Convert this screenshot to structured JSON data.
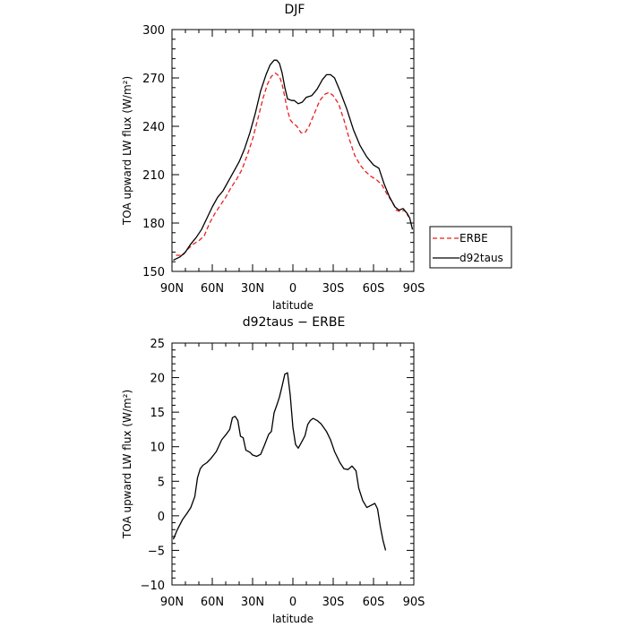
{
  "chart_data": [
    {
      "type": "line",
      "title": "DJF",
      "xlabel": "latitude",
      "ylabel": "TOA upward LW flux (W/m²)",
      "xlim": [
        90,
        -90
      ],
      "ylim": [
        150,
        300
      ],
      "x_ticks": [
        "90N",
        "60N",
        "30N",
        "0",
        "30S",
        "60S",
        "90S"
      ],
      "y_ticks": [
        150,
        180,
        210,
        240,
        270,
        300
      ],
      "legend": {
        "placement": "right",
        "entries": [
          "ERBE",
          "d92taus"
        ]
      },
      "series": [
        {
          "name": "ERBE",
          "color": "#e8201e",
          "style": "dashed",
          "points": [
            [
              87,
              160
            ],
            [
              82,
              160
            ],
            [
              78,
              164
            ],
            [
              74,
              167
            ],
            [
              70,
              169
            ],
            [
              66,
              172
            ],
            [
              62,
              180
            ],
            [
              58,
              186
            ],
            [
              54,
              191
            ],
            [
              50,
              196
            ],
            [
              46,
              202
            ],
            [
              42,
              207
            ],
            [
              38,
              213
            ],
            [
              34,
              222
            ],
            [
              30,
              232
            ],
            [
              26,
              245
            ],
            [
              22,
              258
            ],
            [
              19,
              266
            ],
            [
              16,
              271
            ],
            [
              13,
              273
            ],
            [
              10,
              271
            ],
            [
              8,
              266
            ],
            [
              6,
              258
            ],
            [
              4,
              250
            ],
            [
              2,
              244
            ],
            [
              0,
              242
            ],
            [
              -3,
              240
            ],
            [
              -6,
              236
            ],
            [
              -9,
              236
            ],
            [
              -12,
              240
            ],
            [
              -16,
              248
            ],
            [
              -20,
              256
            ],
            [
              -24,
              260
            ],
            [
              -27,
              261
            ],
            [
              -30,
              259
            ],
            [
              -34,
              254
            ],
            [
              -38,
              244
            ],
            [
              -42,
              232
            ],
            [
              -46,
              222
            ],
            [
              -50,
              216
            ],
            [
              -54,
              212
            ],
            [
              -58,
              209
            ],
            [
              -62,
              207
            ],
            [
              -66,
              204
            ],
            [
              -70,
              198
            ],
            [
              -74,
              193
            ],
            [
              -77,
              188
            ],
            [
              -80,
              187
            ],
            [
              -83,
              188
            ],
            [
              -86,
              184
            ]
          ]
        },
        {
          "name": "d92taus",
          "color": "#000000",
          "style": "solid",
          "points": [
            [
              89,
              157
            ],
            [
              84,
              159
            ],
            [
              80,
              162
            ],
            [
              76,
              167
            ],
            [
              72,
              171
            ],
            [
              68,
              176
            ],
            [
              64,
              183
            ],
            [
              60,
              190
            ],
            [
              56,
              196
            ],
            [
              52,
              200
            ],
            [
              48,
              206
            ],
            [
              44,
              212
            ],
            [
              40,
              218
            ],
            [
              36,
              226
            ],
            [
              32,
              236
            ],
            [
              28,
              248
            ],
            [
              24,
              262
            ],
            [
              20,
              272
            ],
            [
              17,
              278
            ],
            [
              14,
              281
            ],
            [
              12,
              281
            ],
            [
              10,
              279
            ],
            [
              8,
              273
            ],
            [
              6,
              264
            ],
            [
              4,
              257
            ],
            [
              1,
              256
            ],
            [
              -1,
              256
            ],
            [
              -4,
              254
            ],
            [
              -7,
              255
            ],
            [
              -10,
              258
            ],
            [
              -14,
              259
            ],
            [
              -18,
              263
            ],
            [
              -22,
              269
            ],
            [
              -25,
              272
            ],
            [
              -28,
              272
            ],
            [
              -31,
              270
            ],
            [
              -35,
              262
            ],
            [
              -40,
              251
            ],
            [
              -45,
              238
            ],
            [
              -50,
              228
            ],
            [
              -55,
              221
            ],
            [
              -60,
              216
            ],
            [
              -64,
              214
            ],
            [
              -68,
              204
            ],
            [
              -72,
              196
            ],
            [
              -76,
              190
            ],
            [
              -79,
              188
            ],
            [
              -82,
              189
            ],
            [
              -85,
              186
            ],
            [
              -87,
              183
            ],
            [
              -89,
              176
            ]
          ]
        }
      ]
    },
    {
      "type": "line",
      "title": "d92taus − ERBE",
      "xlabel": "latitude",
      "ylabel": "TOA upward LW flux (W/m²)",
      "xlim": [
        90,
        -90
      ],
      "ylim": [
        -10,
        25
      ],
      "x_ticks": [
        "90N",
        "60N",
        "30N",
        "0",
        "30S",
        "60S",
        "90S"
      ],
      "y_ticks": [
        -10,
        -5,
        0,
        5,
        10,
        15,
        20,
        25
      ],
      "series": [
        {
          "color": "#000000",
          "style": "solid",
          "points": [
            [
              89,
              -3.4
            ],
            [
              86,
              -2
            ],
            [
              82,
              -0.5
            ],
            [
              79,
              0.3
            ],
            [
              76,
              1.2
            ],
            [
              73,
              2.8
            ],
            [
              71,
              5.5
            ],
            [
              69,
              6.8
            ],
            [
              67,
              7.3
            ],
            [
              64,
              7.7
            ],
            [
              61,
              8.3
            ],
            [
              57,
              9.3
            ],
            [
              53,
              11
            ],
            [
              50,
              11.7
            ],
            [
              47,
              12.5
            ],
            [
              45,
              14.2
            ],
            [
              43,
              14.4
            ],
            [
              41,
              13.8
            ],
            [
              39,
              11.5
            ],
            [
              37,
              11.3
            ],
            [
              35,
              9.5
            ],
            [
              32,
              9.2
            ],
            [
              30,
              8.8
            ],
            [
              27,
              8.6
            ],
            [
              24,
              8.9
            ],
            [
              21,
              10.3
            ],
            [
              18,
              11.8
            ],
            [
              16,
              12.2
            ],
            [
              14,
              14.9
            ],
            [
              12,
              16
            ],
            [
              10,
              17.2
            ],
            [
              8,
              18.8
            ],
            [
              6,
              20.5
            ],
            [
              4,
              20.7
            ],
            [
              2,
              17.5
            ],
            [
              0,
              12.8
            ],
            [
              -2,
              10.3
            ],
            [
              -4,
              9.8
            ],
            [
              -6,
              10.5
            ],
            [
              -9,
              11.6
            ],
            [
              -11,
              13.2
            ],
            [
              -13,
              13.8
            ],
            [
              -15,
              14.1
            ],
            [
              -18,
              13.8
            ],
            [
              -21,
              13.3
            ],
            [
              -25,
              12.2
            ],
            [
              -28,
              11
            ],
            [
              -31,
              9.3
            ],
            [
              -35,
              7.7
            ],
            [
              -38,
              6.8
            ],
            [
              -41,
              6.7
            ],
            [
              -44,
              7.2
            ],
            [
              -47,
              6.5
            ],
            [
              -49,
              4
            ],
            [
              -52,
              2.2
            ],
            [
              -55,
              1.2
            ],
            [
              -58,
              1.5
            ],
            [
              -61,
              1.8
            ],
            [
              -63,
              1
            ],
            [
              -65,
              -1.5
            ],
            [
              -67,
              -3.5
            ],
            [
              -69,
              -5
            ]
          ]
        }
      ]
    }
  ]
}
